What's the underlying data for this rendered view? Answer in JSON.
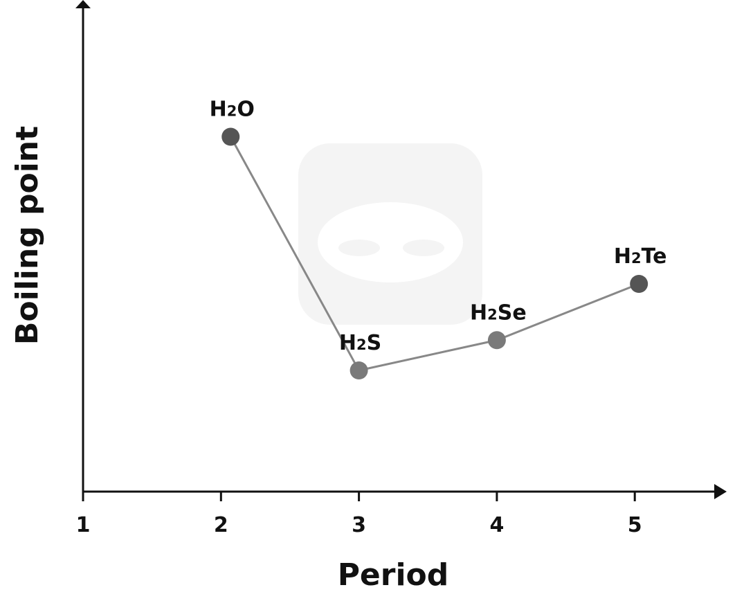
{
  "chart_data": {
    "type": "line",
    "xlabel": "Period",
    "ylabel": "Boiling point",
    "x_ticks": [
      "1",
      "2",
      "3",
      "4",
      "5"
    ],
    "xlim": [
      1,
      5.5
    ],
    "ylim": [
      0,
      100
    ],
    "grid": false,
    "points": [
      {
        "x": 2.07,
        "y": 82,
        "base": "H",
        "sub": "2",
        "tail": "O",
        "color": "#555555"
      },
      {
        "x": 3,
        "y": 28,
        "base": "H",
        "sub": "2",
        "tail": "S",
        "color": "#7a7a7a"
      },
      {
        "x": 4,
        "y": 35,
        "base": "H",
        "sub": "2",
        "tail": "Se",
        "color": "#7a7a7a"
      },
      {
        "x": 5.03,
        "y": 48,
        "base": "H",
        "sub": "2",
        "tail": "Te",
        "color": "#555555"
      }
    ],
    "line_color": "#888888"
  }
}
